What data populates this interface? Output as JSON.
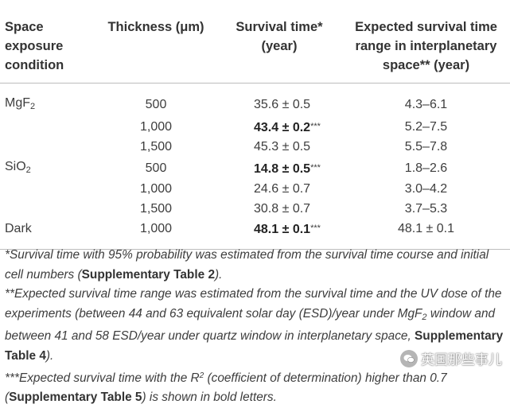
{
  "table": {
    "headers": {
      "condition_l1": "Space",
      "condition_l2": "exposure",
      "condition_l3": "condition",
      "thickness": "Thickness (μm)",
      "survival_l1": "Survival time*",
      "survival_l2": "(year)",
      "expected_l1": "Expected survival time",
      "expected_l2": "range in interplanetary",
      "expected_l3": "space** (year)"
    },
    "rows": [
      {
        "cond_main": "MgF",
        "cond_sub": "2",
        "thickness": "500",
        "survival": "35.6 ± 0.5",
        "stars": "",
        "expected": "4.3–6.1"
      },
      {
        "cond_main": "",
        "cond_sub": "",
        "thickness": "1,000",
        "survival": "43.4 ± 0.2",
        "stars": "***",
        "expected": "5.2–7.5"
      },
      {
        "cond_main": "",
        "cond_sub": "",
        "thickness": "1,500",
        "survival": "45.3 ± 0.5",
        "stars": "",
        "expected": "5.5–7.8"
      },
      {
        "cond_main": "SiO",
        "cond_sub": "2",
        "thickness": "500",
        "survival": "14.8 ± 0.5",
        "stars": "***",
        "expected": "1.8–2.6"
      },
      {
        "cond_main": "",
        "cond_sub": "",
        "thickness": "1,000",
        "survival": "24.6 ± 0.7",
        "stars": "",
        "expected": "3.0–4.2"
      },
      {
        "cond_main": "",
        "cond_sub": "",
        "thickness": "1,500",
        "survival": "30.8 ± 0.7",
        "stars": "",
        "expected": "3.7–5.3"
      },
      {
        "cond_main": "Dark",
        "cond_sub": "",
        "thickness": "1,000",
        "survival": "48.1 ± 0.1",
        "stars": "***",
        "expected": "48.1 ± 0.1"
      }
    ]
  },
  "footnotes": {
    "fn1_pre": "*Survival time with 95% probability was estimated from the survival time course and initial cell numbers (",
    "fn1_bold": "Supplementary Table 2",
    "fn1_post": ").",
    "fn2_pre": "**Expected survival time range was estimated from the survival time and the UV dose of the experiments (between 44 and 63 equivalent solar day (ESD)/year under MgF",
    "fn2_sub": "2",
    "fn2_mid": " window and between 41 and 58 ESD/year under quartz window in interplanetary space, ",
    "fn2_bold": "Supplementary Table 4",
    "fn2_post": ").",
    "fn3_pre": "***Expected survival time with the R",
    "fn3_sup": "2",
    "fn3_mid": " (coefficient of determination) higher than 0.7 (",
    "fn3_bold": "Supplementary Table 5",
    "fn3_post": ") is shown in bold letters."
  },
  "watermark": {
    "text": "英国那些事儿"
  }
}
